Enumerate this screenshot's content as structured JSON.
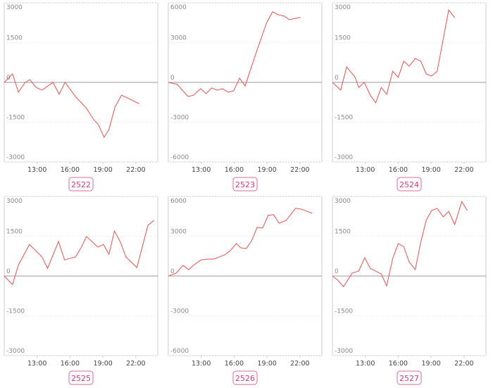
{
  "chart_data": [
    {
      "type": "line",
      "title": "2522",
      "xlim": [
        10,
        24
      ],
      "xticks": [
        {
          "value": 13,
          "label": "13:00"
        },
        {
          "value": 16,
          "label": "16:00"
        },
        {
          "value": 19,
          "label": "19:00"
        },
        {
          "value": 22,
          "label": "22:00"
        }
      ],
      "ylim": [
        -3000,
        3000
      ],
      "yticks": [
        3000,
        1500,
        0,
        -1500,
        -3000
      ],
      "grid": true,
      "x": [
        10.0,
        10.75,
        11.3,
        11.9,
        12.35,
        12.9,
        13.45,
        14.45,
        15.0,
        15.55,
        16.55,
        17.5,
        18.15,
        18.6,
        19.1,
        19.55,
        20.1,
        20.7,
        22.3
      ],
      "series": [
        {
          "name": "2522",
          "color": "#e06060",
          "values": [
            0,
            320,
            -370,
            0,
            100,
            -190,
            -290,
            0,
            -450,
            0,
            -560,
            -980,
            -1400,
            -1600,
            -2070,
            -1780,
            -930,
            -480,
            -800
          ]
        }
      ]
    },
    {
      "type": "line",
      "title": "2523",
      "xlim": [
        10,
        24
      ],
      "xticks": [
        {
          "value": 13,
          "label": "13:00"
        },
        {
          "value": 16,
          "label": "16:00"
        },
        {
          "value": 19,
          "label": "19:00"
        },
        {
          "value": 22,
          "label": "22:00"
        }
      ],
      "ylim": [
        -6000,
        6000
      ],
      "yticks": [
        6000,
        3000,
        0,
        -3000,
        -6000
      ],
      "grid": true,
      "x": [
        10.0,
        10.8,
        11.8,
        12.3,
        12.95,
        13.45,
        13.95,
        14.45,
        14.95,
        15.45,
        15.95,
        16.5,
        17.0,
        18.0,
        18.95,
        19.5,
        20.0,
        20.55,
        21.05,
        22.05
      ],
      "series": [
        {
          "name": "2523",
          "color": "#e06060",
          "values": [
            0,
            -150,
            -1060,
            -960,
            -480,
            -850,
            -420,
            -590,
            -480,
            -740,
            -640,
            320,
            -270,
            2230,
            4470,
            5320,
            5100,
            5000,
            4730,
            4900
          ]
        }
      ]
    },
    {
      "type": "line",
      "title": "2524",
      "xlim": [
        10,
        24
      ],
      "xticks": [
        {
          "value": 13,
          "label": "13:00"
        },
        {
          "value": 16,
          "label": "16:00"
        },
        {
          "value": 19,
          "label": "19:00"
        },
        {
          "value": 22,
          "label": "22:00"
        }
      ],
      "ylim": [
        -3000,
        3000
      ],
      "yticks": [
        3000,
        1500,
        0,
        -1500,
        -3000
      ],
      "grid": true,
      "x": [
        10.0,
        10.75,
        11.3,
        12.05,
        12.4,
        12.9,
        13.45,
        13.95,
        14.45,
        14.95,
        15.5,
        16.0,
        16.5,
        17.0,
        17.55,
        18.05,
        18.55,
        19.05,
        19.55,
        20.6,
        21.15
      ],
      "series": [
        {
          "name": "2524",
          "color": "#e06060",
          "values": [
            0,
            -290,
            580,
            210,
            -190,
            0,
            -480,
            -770,
            -190,
            -450,
            420,
            190,
            800,
            610,
            900,
            800,
            320,
            240,
            420,
            2730,
            2440
          ]
        }
      ]
    },
    {
      "type": "line",
      "title": "2525",
      "xlim": [
        10,
        24
      ],
      "xticks": [
        {
          "value": 13,
          "label": "13:00"
        },
        {
          "value": 16,
          "label": "16:00"
        },
        {
          "value": 19,
          "label": "19:00"
        },
        {
          "value": 22,
          "label": "22:00"
        }
      ],
      "ylim": [
        -3000,
        3000
      ],
      "yticks": [
        3000,
        1500,
        0,
        -1500,
        -3000
      ],
      "grid": true,
      "x": [
        10.0,
        10.75,
        11.3,
        12.3,
        13.45,
        13.95,
        14.95,
        15.5,
        16.5,
        17.0,
        17.5,
        18.55,
        19.05,
        19.55,
        20.05,
        20.6,
        21.1,
        22.1,
        23.1,
        23.65
      ],
      "series": [
        {
          "name": "2525",
          "color": "#e06060",
          "values": [
            0,
            -320,
            420,
            1190,
            720,
            290,
            1300,
            610,
            720,
            1060,
            1490,
            1090,
            1190,
            820,
            1700,
            1270,
            720,
            320,
            1910,
            2100
          ]
        }
      ]
    },
    {
      "type": "line",
      "title": "2526",
      "xlim": [
        10,
        24
      ],
      "xticks": [
        {
          "value": 13,
          "label": "13:00"
        },
        {
          "value": 16,
          "label": "16:00"
        },
        {
          "value": 19,
          "label": "19:00"
        },
        {
          "value": 22,
          "label": "22:00"
        }
      ],
      "ylim": [
        -6000,
        6000
      ],
      "yticks": [
        6000,
        3000,
        0,
        -3000,
        -6000
      ],
      "grid": true,
      "x": [
        10.0,
        10.7,
        11.35,
        11.85,
        12.35,
        13.0,
        13.65,
        14.15,
        14.65,
        15.15,
        15.65,
        16.2,
        16.6,
        17.1,
        17.6,
        18.1,
        18.6,
        19.1,
        19.6,
        20.1,
        20.75,
        21.6,
        22.1,
        23.1
      ],
      "series": [
        {
          "name": "2526",
          "color": "#e06060",
          "values": [
            0,
            210,
            800,
            480,
            850,
            1220,
            1280,
            1280,
            1440,
            1600,
            1910,
            2450,
            2130,
            2070,
            2660,
            3670,
            3620,
            4570,
            4630,
            3990,
            4200,
            5110,
            5050,
            4730
          ]
        }
      ]
    },
    {
      "type": "line",
      "title": "2527",
      "xlim": [
        10,
        24
      ],
      "xticks": [
        {
          "value": 13,
          "label": "13:00"
        },
        {
          "value": 16,
          "label": "16:00"
        },
        {
          "value": 19,
          "label": "19:00"
        },
        {
          "value": 22,
          "label": "22:00"
        }
      ],
      "ylim": [
        -3000,
        3000
      ],
      "yticks": [
        3000,
        1500,
        0,
        -1500,
        -3000
      ],
      "grid": true,
      "x": [
        10.0,
        10.5,
        11.0,
        11.8,
        12.4,
        12.95,
        13.45,
        14.45,
        14.95,
        15.5,
        16.0,
        16.5,
        17.0,
        17.55,
        18.05,
        18.55,
        19.05,
        19.55,
        20.1,
        20.6,
        21.15,
        21.8,
        22.3
      ],
      "series": [
        {
          "name": "2527",
          "color": "#e06060",
          "values": [
            0,
            -160,
            -400,
            110,
            190,
            690,
            290,
            80,
            -370,
            660,
            1220,
            1110,
            530,
            240,
            1270,
            2100,
            2470,
            2550,
            2230,
            2440,
            1940,
            2810,
            2470
          ]
        }
      ]
    }
  ]
}
